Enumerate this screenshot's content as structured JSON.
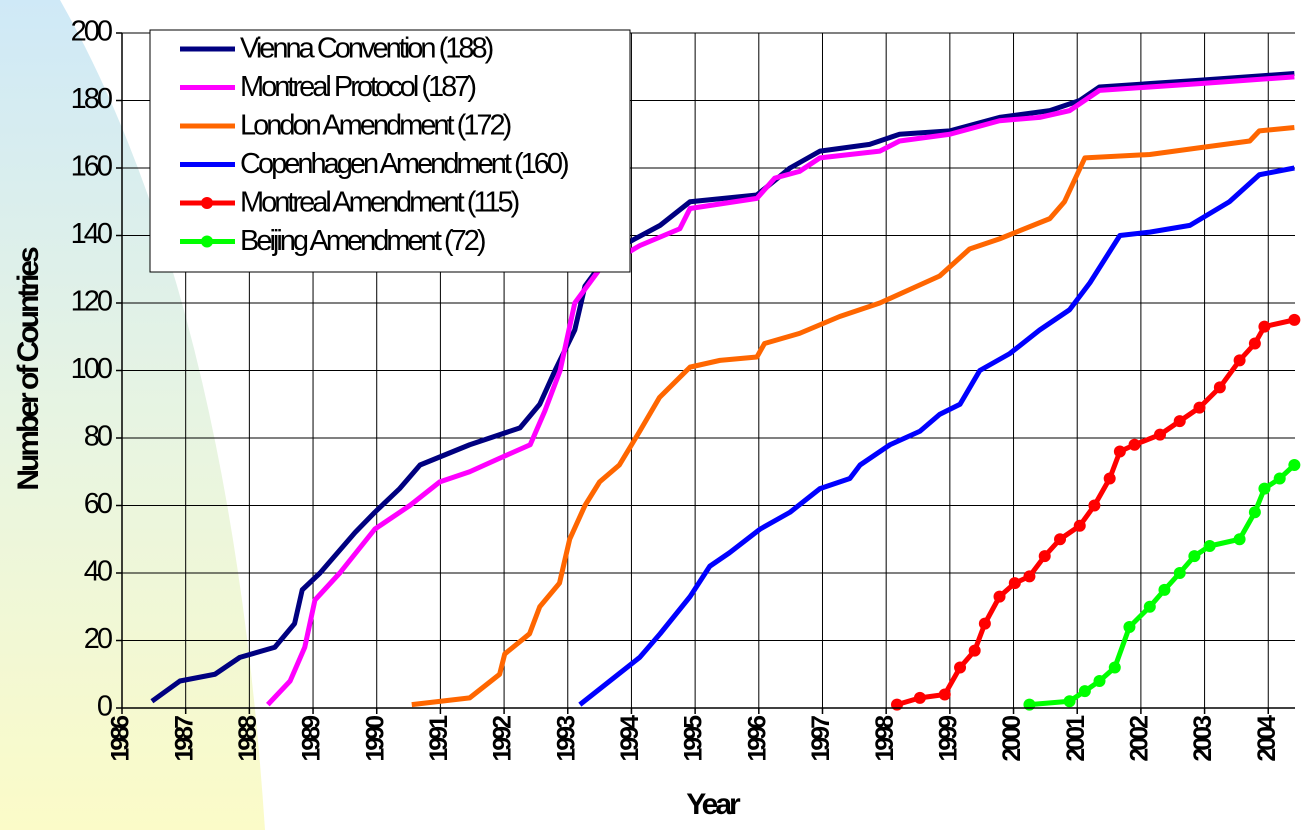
{
  "chart_data": {
    "type": "line",
    "xlabel": "Year",
    "ylabel": "Number of Countries",
    "xlim": [
      1986,
      2004.42
    ],
    "ylim": [
      0,
      200
    ],
    "xticks": [
      1986,
      1987,
      1988,
      1989,
      1990,
      1991,
      1992,
      1993,
      1994,
      1995,
      1996,
      1997,
      1998,
      1999,
      2000,
      2001,
      2002,
      2003,
      2004
    ],
    "yticks": [
      0,
      20,
      40,
      60,
      80,
      100,
      120,
      140,
      160,
      180,
      200
    ],
    "grid": true,
    "legend": "upper left",
    "series": [
      {
        "name": "Vienna Convention (188)",
        "color": "#000080",
        "marker": false,
        "x": [
          1986.47,
          1986.91,
          1987.46,
          1987.85,
          1988.4,
          1988.71,
          1988.83,
          1989.11,
          1989.66,
          1989.97,
          1990.36,
          1990.68,
          1991.46,
          1992.25,
          1992.56,
          1992.8,
          1993.11,
          1993.27,
          1993.66,
          1994.45,
          1994.92,
          1995.97,
          1996.49,
          1996.96,
          1997.74,
          1998.21,
          1999.0,
          1999.78,
          2000.57,
          2001.04,
          2001.35,
          2002.92,
          2004.41
        ],
        "values": [
          2,
          8,
          10,
          15,
          18,
          25,
          35,
          40,
          52,
          58,
          65,
          72,
          78,
          83,
          90,
          100,
          112,
          125,
          135,
          143,
          150,
          152,
          160,
          165,
          167,
          170,
          171,
          175,
          177,
          180,
          184,
          186,
          188
        ]
      },
      {
        "name": "Montreal Protocol (187)",
        "color": "#ff00ff",
        "marker": false,
        "x": [
          1988.29,
          1988.64,
          1988.87,
          1989.03,
          1989.42,
          1989.97,
          1990.52,
          1990.99,
          1991.46,
          1991.93,
          1992.41,
          1992.64,
          1992.88,
          1993.11,
          1993.5,
          1994.13,
          1994.76,
          1994.92,
          1995.97,
          1996.25,
          1996.64,
          1996.96,
          1997.9,
          1998.21,
          1999.0,
          1999.78,
          2000.41,
          2000.88,
          2001.35,
          2002.92,
          2004.41
        ],
        "values": [
          1,
          8,
          18,
          32,
          40,
          53,
          60,
          67,
          70,
          74,
          78,
          88,
          100,
          120,
          130,
          137,
          142,
          148,
          151,
          157,
          159,
          163,
          165,
          168,
          170,
          174,
          175,
          177,
          183,
          185,
          187
        ]
      },
      {
        "name": "London Amendment (172)",
        "color": "#ff6600",
        "marker": false,
        "x": [
          1990.55,
          1991.46,
          1991.93,
          1992.01,
          1992.4,
          1992.56,
          1992.87,
          1993.03,
          1993.27,
          1993.5,
          1993.81,
          1994.13,
          1994.44,
          1994.92,
          1995.39,
          1995.97,
          1996.09,
          1996.64,
          1997.27,
          1997.9,
          1998.37,
          1998.84,
          1999.31,
          1999.78,
          2000.57,
          2000.8,
          2001.12,
          2002.14,
          2002.92,
          2003.71,
          2003.86,
          2004.41
        ],
        "values": [
          1,
          3,
          10,
          16,
          22,
          30,
          37,
          50,
          60,
          67,
          72,
          82,
          92,
          101,
          103,
          104,
          108,
          111,
          116,
          120,
          124,
          128,
          136,
          139,
          145,
          150,
          163,
          164,
          166,
          168,
          171,
          172
        ]
      },
      {
        "name": "Copenhagen Amendment (160)",
        "color": "#0000ff",
        "marker": false,
        "x": [
          1993.19,
          1993.66,
          1994.13,
          1994.45,
          1994.92,
          1995.23,
          1995.54,
          1996.02,
          1996.49,
          1996.96,
          1997.43,
          1997.59,
          1998.06,
          1998.53,
          1998.84,
          1999.16,
          1999.47,
          1999.94,
          2000.41,
          2000.88,
          2001.2,
          2001.67,
          2002.14,
          2002.77,
          2003.39,
          2003.86,
          2004.41
        ],
        "values": [
          1,
          8,
          15,
          22,
          33,
          42,
          46,
          53,
          58,
          65,
          68,
          72,
          78,
          82,
          87,
          90,
          100,
          105,
          112,
          118,
          126,
          140,
          141,
          143,
          150,
          158,
          160
        ]
      },
      {
        "name": "Montreal Amendment (115)",
        "color": "#ff0000",
        "marker": true,
        "x": [
          1998.17,
          1998.53,
          1998.92,
          1999.16,
          1999.39,
          1999.55,
          1999.78,
          2000.02,
          2000.25,
          2000.49,
          2000.73,
          2001.04,
          2001.27,
          2001.51,
          2001.67,
          2001.9,
          2002.3,
          2002.61,
          2002.92,
          2003.24,
          2003.55,
          2003.79,
          2003.94,
          2004.41
        ],
        "values": [
          1,
          3,
          4,
          12,
          17,
          25,
          33,
          37,
          39,
          45,
          50,
          54,
          60,
          68,
          76,
          78,
          81,
          85,
          89,
          95,
          103,
          108,
          113,
          115
        ]
      },
      {
        "name": "Beijing Amendment (72)",
        "color": "#00ff00",
        "marker": true,
        "x": [
          2000.25,
          2000.88,
          2001.12,
          2001.35,
          2001.59,
          2001.82,
          2002.14,
          2002.37,
          2002.61,
          2002.84,
          2003.08,
          2003.55,
          2003.79,
          2003.94,
          2004.18,
          2004.41
        ],
        "values": [
          1,
          2,
          5,
          8,
          12,
          24,
          30,
          35,
          40,
          45,
          48,
          50,
          58,
          65,
          68,
          72
        ]
      }
    ]
  }
}
